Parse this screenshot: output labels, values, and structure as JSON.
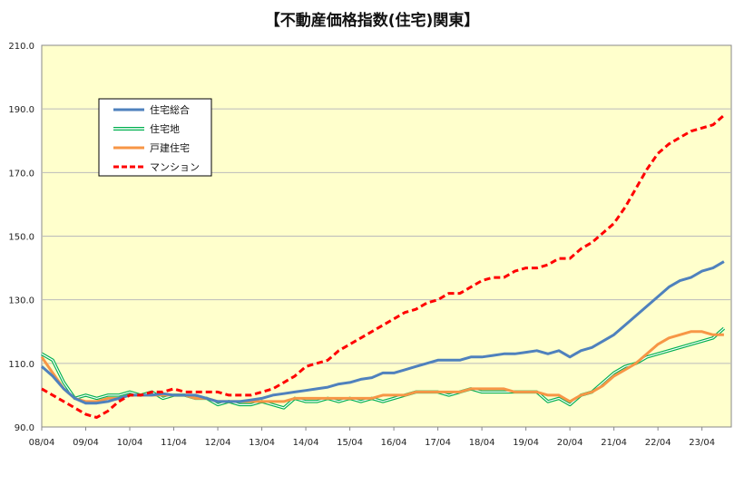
{
  "chart_data": {
    "type": "line",
    "title": "【不動産価格指数(住宅)関東】",
    "xlabel": "",
    "ylabel": "",
    "ylim": [
      90,
      210
    ],
    "y_ticks": [
      "90.0",
      "110.0",
      "130.0",
      "150.0",
      "170.0",
      "190.0",
      "210.0"
    ],
    "x_ticks": [
      "08/04",
      "09/04",
      "10/04",
      "11/04",
      "12/04",
      "13/04",
      "14/04",
      "15/04",
      "16/04",
      "17/04",
      "18/04",
      "19/04",
      "20/04",
      "21/04",
      "22/04",
      "23/04"
    ],
    "grid": true,
    "legend_position": "upper-left",
    "plot_background": "#FFFFCC",
    "x_start": "2008-04",
    "series": [
      {
        "name": "住宅総合",
        "color": "#4F81BD",
        "style": "solid",
        "points": [
          [
            "2008-04",
            109
          ],
          [
            "2008-07",
            106
          ],
          [
            "2008-10",
            102
          ],
          [
            "2009-01",
            99
          ],
          [
            "2009-04",
            97.5
          ],
          [
            "2009-07",
            97.5
          ],
          [
            "2009-10",
            98
          ],
          [
            "2010-01",
            99
          ],
          [
            "2010-04",
            100
          ],
          [
            "2010-07",
            100
          ],
          [
            "2010-10",
            100
          ],
          [
            "2011-01",
            100.5
          ],
          [
            "2011-04",
            100
          ],
          [
            "2011-07",
            100
          ],
          [
            "2011-10",
            100
          ],
          [
            "2012-01",
            99
          ],
          [
            "2012-04",
            98
          ],
          [
            "2012-07",
            98
          ],
          [
            "2012-10",
            98
          ],
          [
            "2013-01",
            98.5
          ],
          [
            "2013-04",
            99
          ],
          [
            "2013-07",
            100
          ],
          [
            "2013-10",
            100.5
          ],
          [
            "2014-01",
            101
          ],
          [
            "2014-04",
            101.5
          ],
          [
            "2014-07",
            102
          ],
          [
            "2014-10",
            102.5
          ],
          [
            "2015-01",
            103.5
          ],
          [
            "2015-04",
            104
          ],
          [
            "2015-07",
            105
          ],
          [
            "2015-10",
            105.5
          ],
          [
            "2016-01",
            107
          ],
          [
            "2016-04",
            107
          ],
          [
            "2016-07",
            108
          ],
          [
            "2016-10",
            109
          ],
          [
            "2017-01",
            110
          ],
          [
            "2017-04",
            111
          ],
          [
            "2017-07",
            111
          ],
          [
            "2017-10",
            111
          ],
          [
            "2018-01",
            112
          ],
          [
            "2018-04",
            112
          ],
          [
            "2018-07",
            112.5
          ],
          [
            "2018-10",
            113
          ],
          [
            "2019-01",
            113
          ],
          [
            "2019-04",
            113.5
          ],
          [
            "2019-07",
            114
          ],
          [
            "2019-10",
            113
          ],
          [
            "2020-01",
            114
          ],
          [
            "2020-04",
            112
          ],
          [
            "2020-07",
            114
          ],
          [
            "2020-10",
            115
          ],
          [
            "2021-01",
            117
          ],
          [
            "2021-04",
            119
          ],
          [
            "2021-07",
            122
          ],
          [
            "2021-10",
            125
          ],
          [
            "2022-01",
            128
          ],
          [
            "2022-04",
            131
          ],
          [
            "2022-07",
            134
          ],
          [
            "2022-10",
            136
          ],
          [
            "2023-01",
            137
          ],
          [
            "2023-04",
            139
          ],
          [
            "2023-07",
            140
          ],
          [
            "2023-10",
            142
          ]
        ]
      },
      {
        "name": "住宅地",
        "color": "#00B050",
        "style": "double",
        "points": [
          [
            "2008-04",
            113
          ],
          [
            "2008-07",
            111
          ],
          [
            "2008-10",
            104
          ],
          [
            "2009-01",
            99
          ],
          [
            "2009-04",
            100
          ],
          [
            "2009-07",
            99
          ],
          [
            "2009-10",
            100
          ],
          [
            "2010-01",
            100
          ],
          [
            "2010-04",
            101
          ],
          [
            "2010-07",
            100
          ],
          [
            "2010-10",
            101
          ],
          [
            "2011-01",
            99
          ],
          [
            "2011-04",
            100
          ],
          [
            "2011-07",
            100
          ],
          [
            "2011-10",
            99
          ],
          [
            "2012-01",
            99
          ],
          [
            "2012-04",
            97
          ],
          [
            "2012-07",
            98
          ],
          [
            "2012-10",
            97
          ],
          [
            "2013-01",
            97
          ],
          [
            "2013-04",
            98
          ],
          [
            "2013-07",
            97
          ],
          [
            "2013-10",
            96
          ],
          [
            "2014-01",
            99
          ],
          [
            "2014-04",
            98
          ],
          [
            "2014-07",
            98
          ],
          [
            "2014-10",
            99
          ],
          [
            "2015-01",
            98
          ],
          [
            "2015-04",
            99
          ],
          [
            "2015-07",
            98
          ],
          [
            "2015-10",
            99
          ],
          [
            "2016-01",
            98
          ],
          [
            "2016-04",
            99
          ],
          [
            "2016-07",
            100
          ],
          [
            "2016-10",
            101
          ],
          [
            "2017-01",
            101
          ],
          [
            "2017-04",
            101
          ],
          [
            "2017-07",
            100
          ],
          [
            "2017-10",
            101
          ],
          [
            "2018-01",
            102
          ],
          [
            "2018-04",
            101
          ],
          [
            "2018-07",
            101
          ],
          [
            "2018-10",
            101
          ],
          [
            "2019-01",
            101
          ],
          [
            "2019-04",
            101
          ],
          [
            "2019-07",
            101
          ],
          [
            "2019-10",
            98
          ],
          [
            "2020-01",
            99
          ],
          [
            "2020-04",
            97
          ],
          [
            "2020-07",
            100
          ],
          [
            "2020-10",
            101
          ],
          [
            "2021-01",
            104
          ],
          [
            "2021-04",
            107
          ],
          [
            "2021-07",
            109
          ],
          [
            "2021-10",
            110
          ],
          [
            "2022-01",
            112
          ],
          [
            "2022-04",
            113
          ],
          [
            "2022-07",
            114
          ],
          [
            "2022-10",
            115
          ],
          [
            "2023-01",
            116
          ],
          [
            "2023-04",
            117
          ],
          [
            "2023-07",
            118
          ],
          [
            "2023-10",
            121
          ]
        ]
      },
      {
        "name": "戸建住宅",
        "color": "#F79646",
        "style": "solid",
        "points": [
          [
            "2008-04",
            112
          ],
          [
            "2008-07",
            107
          ],
          [
            "2008-10",
            102
          ],
          [
            "2009-01",
            99
          ],
          [
            "2009-04",
            98
          ],
          [
            "2009-07",
            98
          ],
          [
            "2009-10",
            99
          ],
          [
            "2010-01",
            99
          ],
          [
            "2010-04",
            100
          ],
          [
            "2010-07",
            100
          ],
          [
            "2010-10",
            100
          ],
          [
            "2011-01",
            100
          ],
          [
            "2011-04",
            100
          ],
          [
            "2011-07",
            100
          ],
          [
            "2011-10",
            99
          ],
          [
            "2012-01",
            99
          ],
          [
            "2012-04",
            98
          ],
          [
            "2012-07",
            98
          ],
          [
            "2012-10",
            98
          ],
          [
            "2013-01",
            98
          ],
          [
            "2013-04",
            98
          ],
          [
            "2013-07",
            98
          ],
          [
            "2013-10",
            98
          ],
          [
            "2014-01",
            99
          ],
          [
            "2014-04",
            99
          ],
          [
            "2014-07",
            99
          ],
          [
            "2014-10",
            99
          ],
          [
            "2015-01",
            99
          ],
          [
            "2015-04",
            99
          ],
          [
            "2015-07",
            99
          ],
          [
            "2015-10",
            99
          ],
          [
            "2016-01",
            100
          ],
          [
            "2016-04",
            100
          ],
          [
            "2016-07",
            100
          ],
          [
            "2016-10",
            101
          ],
          [
            "2017-01",
            101
          ],
          [
            "2017-04",
            101
          ],
          [
            "2017-07",
            101
          ],
          [
            "2017-10",
            101
          ],
          [
            "2018-01",
            102
          ],
          [
            "2018-04",
            102
          ],
          [
            "2018-07",
            102
          ],
          [
            "2018-10",
            102
          ],
          [
            "2019-01",
            101
          ],
          [
            "2019-04",
            101
          ],
          [
            "2019-07",
            101
          ],
          [
            "2019-10",
            100
          ],
          [
            "2020-01",
            100
          ],
          [
            "2020-04",
            98
          ],
          [
            "2020-07",
            100
          ],
          [
            "2020-10",
            101
          ],
          [
            "2021-01",
            103
          ],
          [
            "2021-04",
            106
          ],
          [
            "2021-07",
            108
          ],
          [
            "2021-10",
            110
          ],
          [
            "2022-01",
            113
          ],
          [
            "2022-04",
            116
          ],
          [
            "2022-07",
            118
          ],
          [
            "2022-10",
            119
          ],
          [
            "2023-01",
            120
          ],
          [
            "2023-04",
            120
          ],
          [
            "2023-07",
            119
          ],
          [
            "2023-10",
            119
          ]
        ]
      },
      {
        "name": "マンション",
        "color": "#FF0000",
        "style": "dashed",
        "points": [
          [
            "2008-04",
            102
          ],
          [
            "2008-07",
            100
          ],
          [
            "2008-10",
            98
          ],
          [
            "2009-01",
            96
          ],
          [
            "2009-04",
            94
          ],
          [
            "2009-07",
            93
          ],
          [
            "2009-10",
            95
          ],
          [
            "2010-01",
            98
          ],
          [
            "2010-04",
            100
          ],
          [
            "2010-07",
            100
          ],
          [
            "2010-10",
            101
          ],
          [
            "2011-01",
            101
          ],
          [
            "2011-04",
            102
          ],
          [
            "2011-07",
            101
          ],
          [
            "2011-10",
            101
          ],
          [
            "2012-01",
            101
          ],
          [
            "2012-04",
            101
          ],
          [
            "2012-07",
            100
          ],
          [
            "2012-10",
            100
          ],
          [
            "2013-01",
            100
          ],
          [
            "2013-04",
            101
          ],
          [
            "2013-07",
            102
          ],
          [
            "2013-10",
            104
          ],
          [
            "2014-01",
            106
          ],
          [
            "2014-04",
            109
          ],
          [
            "2014-07",
            110
          ],
          [
            "2014-10",
            111
          ],
          [
            "2015-01",
            114
          ],
          [
            "2015-04",
            116
          ],
          [
            "2015-07",
            118
          ],
          [
            "2015-10",
            120
          ],
          [
            "2016-01",
            122
          ],
          [
            "2016-04",
            124
          ],
          [
            "2016-07",
            126
          ],
          [
            "2016-10",
            127
          ],
          [
            "2017-01",
            129
          ],
          [
            "2017-04",
            130
          ],
          [
            "2017-07",
            132
          ],
          [
            "2017-10",
            132
          ],
          [
            "2018-01",
            134
          ],
          [
            "2018-04",
            136
          ],
          [
            "2018-07",
            137
          ],
          [
            "2018-10",
            137
          ],
          [
            "2019-01",
            139
          ],
          [
            "2019-04",
            140
          ],
          [
            "2019-07",
            140
          ],
          [
            "2019-10",
            141
          ],
          [
            "2020-01",
            143
          ],
          [
            "2020-04",
            143
          ],
          [
            "2020-07",
            146
          ],
          [
            "2020-10",
            148
          ],
          [
            "2021-01",
            151
          ],
          [
            "2021-04",
            154
          ],
          [
            "2021-07",
            159
          ],
          [
            "2021-10",
            165
          ],
          [
            "2022-01",
            171
          ],
          [
            "2022-04",
            176
          ],
          [
            "2022-07",
            179
          ],
          [
            "2022-10",
            181
          ],
          [
            "2023-01",
            183
          ],
          [
            "2023-04",
            184
          ],
          [
            "2023-07",
            185
          ],
          [
            "2023-10",
            188
          ]
        ]
      }
    ]
  }
}
